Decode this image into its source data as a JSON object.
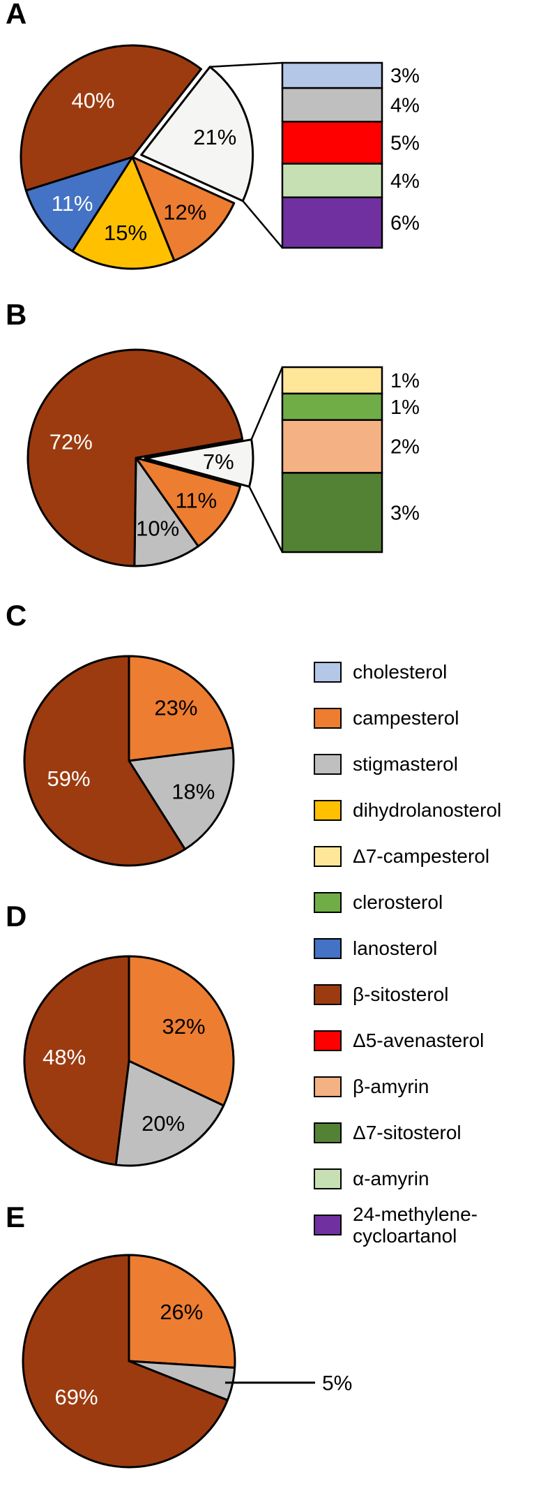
{
  "chart_data": [
    {
      "type": "pie",
      "panel": "A",
      "slices": [
        {
          "sterol": "minor sterols (breakout)",
          "percent": 21,
          "label": "21%",
          "color": "#F5F5F3",
          "text_color": "#000000",
          "exploded": true,
          "breakout": true
        },
        {
          "sterol": "campesterol",
          "percent": 12,
          "label": "12%",
          "color": "#ED7D31",
          "text_color": "#000000"
        },
        {
          "sterol": "dihydrolanosterol",
          "percent": 15,
          "label": "15%",
          "color": "#FFC000",
          "text_color": "#000000"
        },
        {
          "sterol": "lanosterol",
          "percent": 11,
          "label": "11%",
          "color": "#4472C4",
          "text_color": "#FFFFFF"
        },
        {
          "sterol": "β-sitosterol",
          "percent": 40,
          "label": "40%",
          "color": "#9C3B10",
          "text_color": "#FFFFFF"
        }
      ],
      "breakout_bar": [
        {
          "sterol": "cholesterol",
          "percent": 3,
          "label": "3%",
          "color": "#B4C7E7"
        },
        {
          "sterol": "stigmasterol",
          "percent": 4,
          "label": "4%",
          "color": "#BFBFBF"
        },
        {
          "sterol": "Δ5-avenasterol",
          "percent": 5,
          "label": "5%",
          "color": "#FF0000"
        },
        {
          "sterol": "α-amyrin",
          "percent": 4,
          "label": "4%",
          "color": "#C6E0B4"
        },
        {
          "sterol": "24-methylene-cycloartanol",
          "percent": 6,
          "label": "6%",
          "color": "#7030A0"
        }
      ]
    },
    {
      "type": "pie",
      "panel": "B",
      "slices": [
        {
          "sterol": "minor sterols (breakout)",
          "percent": 7,
          "label": "7%",
          "color": "#F5F5F3",
          "text_color": "#000000",
          "exploded": true,
          "breakout": true
        },
        {
          "sterol": "campesterol",
          "percent": 11,
          "label": "11%",
          "color": "#ED7D31",
          "text_color": "#000000"
        },
        {
          "sterol": "stigmasterol",
          "percent": 10,
          "label": "10%",
          "color": "#BFBFBF",
          "text_color": "#000000"
        },
        {
          "sterol": "β-sitosterol",
          "percent": 72,
          "label": "72%",
          "color": "#9C3B10",
          "text_color": "#FFFFFF"
        }
      ],
      "breakout_bar": [
        {
          "sterol": "Δ7-campesterol",
          "percent": 1,
          "label": "1%",
          "color": "#FFE699"
        },
        {
          "sterol": "clerosterol",
          "percent": 1,
          "label": "1%",
          "color": "#70AD47"
        },
        {
          "sterol": "β-amyrin",
          "percent": 2,
          "label": "2%",
          "color": "#F4B183"
        },
        {
          "sterol": "Δ7-sitosterol",
          "percent": 3,
          "label": "3%",
          "color": "#548235"
        }
      ]
    },
    {
      "type": "pie",
      "panel": "C",
      "slices": [
        {
          "sterol": "campesterol",
          "percent": 23,
          "label": "23%",
          "color": "#ED7D31",
          "text_color": "#000000"
        },
        {
          "sterol": "stigmasterol",
          "percent": 18,
          "label": "18%",
          "color": "#BFBFBF",
          "text_color": "#000000"
        },
        {
          "sterol": "β-sitosterol",
          "percent": 59,
          "label": "59%",
          "color": "#9C3B10",
          "text_color": "#FFFFFF"
        }
      ]
    },
    {
      "type": "pie",
      "panel": "D",
      "slices": [
        {
          "sterol": "campesterol",
          "percent": 32,
          "label": "32%",
          "color": "#ED7D31",
          "text_color": "#000000"
        },
        {
          "sterol": "stigmasterol",
          "percent": 20,
          "label": "20%",
          "color": "#BFBFBF",
          "text_color": "#000000"
        },
        {
          "sterol": "β-sitosterol",
          "percent": 48,
          "label": "48%",
          "color": "#9C3B10",
          "text_color": "#FFFFFF"
        }
      ]
    },
    {
      "type": "pie",
      "panel": "E",
      "slices": [
        {
          "sterol": "campesterol",
          "percent": 26,
          "label": "26%",
          "color": "#ED7D31",
          "text_color": "#000000"
        },
        {
          "sterol": "stigmasterol",
          "percent": 5,
          "label": "5%",
          "color": "#BFBFBF",
          "text_color": "#000000",
          "label_outside": true
        },
        {
          "sterol": "β-sitosterol",
          "percent": 69,
          "label": "69%",
          "color": "#9C3B10",
          "text_color": "#FFFFFF"
        }
      ]
    }
  ],
  "legend": {
    "items": [
      {
        "name": "cholesterol",
        "color": "#B4C7E7"
      },
      {
        "name": "campesterol",
        "color": "#ED7D31"
      },
      {
        "name": "stigmasterol",
        "color": "#BFBFBF"
      },
      {
        "name": "dihydrolanosterol",
        "color": "#FFC000"
      },
      {
        "name": "Δ7-campesterol",
        "color": "#FFE699"
      },
      {
        "name": "clerosterol",
        "color": "#70AD47"
      },
      {
        "name": "lanosterol",
        "color": "#4472C4"
      },
      {
        "name": "β-sitosterol",
        "color": "#9C3B10"
      },
      {
        "name": "Δ5-avenasterol",
        "color": "#FF0000"
      },
      {
        "name": "β-amyrin",
        "color": "#F4B183"
      },
      {
        "name": "Δ7-sitosterol",
        "color": "#548235"
      },
      {
        "name": "α-amyrin",
        "color": "#C6E0B4"
      },
      {
        "name": "24-methylene-cycloartanol",
        "color": "#7030A0"
      }
    ]
  }
}
